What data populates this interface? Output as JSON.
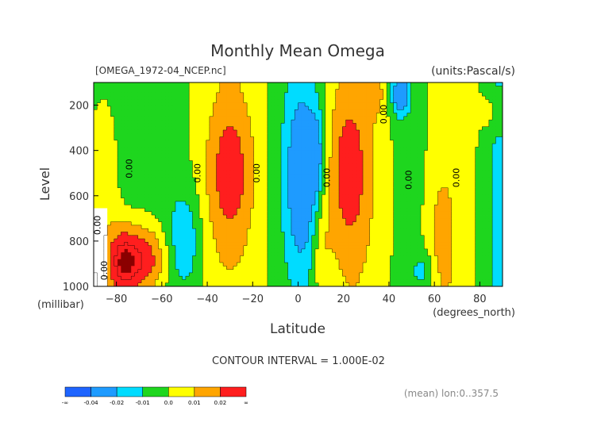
{
  "chart_data": {
    "type": "heatmap",
    "title": "Monthly Mean Omega",
    "file_label": "[OMEGA_1972-04_NCEP.nc]",
    "units_label": "(units:Pascal/s)",
    "xlabel": "Latitude",
    "x_unit_label": "(degrees_north)",
    "ylabel": "Level",
    "y_unit_label": "(millibar)",
    "xlim": [
      -90,
      90
    ],
    "ylim": [
      1000,
      100
    ],
    "x_ticks": [
      -80,
      -60,
      -40,
      -20,
      0,
      20,
      40,
      60,
      80
    ],
    "y_ticks": [
      1000,
      800,
      600,
      400,
      200
    ],
    "contour_labels": [
      {
        "text": "0.00",
        "lat": -73,
        "lev": 480
      },
      {
        "text": "0.00",
        "lat": -43,
        "lev": 500
      },
      {
        "text": "0.00",
        "lat": -17,
        "lev": 500
      },
      {
        "text": "0.00",
        "lat": 14,
        "lev": 520
      },
      {
        "text": "0.00",
        "lat": 39,
        "lev": 240
      },
      {
        "text": "0.00",
        "lat": 50,
        "lev": 530
      },
      {
        "text": "0.00",
        "lat": 71,
        "lev": 520
      },
      {
        "text": "0.00",
        "lat": -87,
        "lev": 730
      },
      {
        "text": "0.00",
        "lat": -84,
        "lev": 930
      }
    ],
    "levels": [
      -0.04,
      -0.02,
      -0.01,
      0.0,
      0.01,
      0.02
    ],
    "colors": [
      "#1e64ff",
      "#1e9bff",
      "#00dcff",
      "#1ed61e",
      "#ffff00",
      "#ffa500",
      "#ff1e1e"
    ],
    "dark_red": "#8b0000",
    "contour_interval_label": "CONTOUR INTERVAL = 1.000E-02",
    "footer_label": "(mean) lon:0..357.5",
    "colorbar": {
      "end_low": "-∞",
      "end_high": "∞",
      "tick_labels": [
        "-0.04",
        "-0.02",
        "-0.01",
        "0.0",
        "0.01",
        "0.02"
      ]
    }
  }
}
